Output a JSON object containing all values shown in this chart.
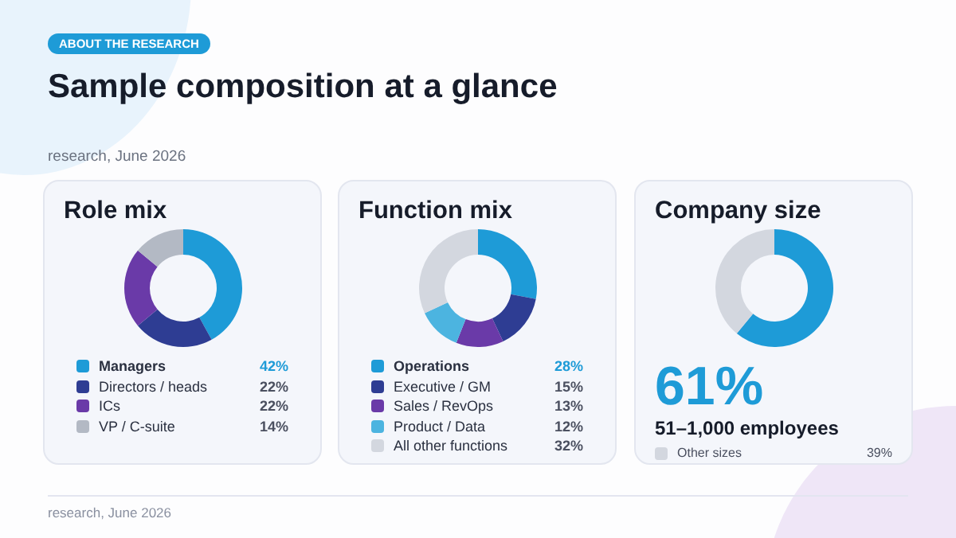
{
  "chart_data": [
    {
      "type": "other",
      "title": "Sample composition at a glance",
      "annotations": [
        "ABOUT THE RESEARCH",
        "research, June 2026",
        "research, June 2026"
      ]
    },
    {
      "type": "donut",
      "title": "Role mix",
      "categories": [
        "Managers",
        "Directors / heads",
        "ICs",
        "VP / C-suite"
      ],
      "values": [
        42,
        22,
        22,
        14
      ],
      "value_labels": [
        "42%",
        "22%",
        "22%",
        "14%"
      ],
      "colors": [
        "#1e9bd7",
        "#2e3d93",
        "#6a3aa8",
        "#b3b9c4"
      ],
      "legend": "bottom"
    },
    {
      "type": "donut",
      "title": "Function mix",
      "categories": [
        "Operations",
        "Executive / GM",
        "Sales / RevOps",
        "Product / Data",
        "All other functions"
      ],
      "values": [
        28,
        15,
        13,
        12,
        32
      ],
      "value_labels": [
        "28%",
        "15%",
        "13%",
        "12%",
        "32%"
      ],
      "colors": [
        "#1e9bd7",
        "#2e3d93",
        "#6a3aa8",
        "#4cb4e0",
        "#d3d7df"
      ],
      "legend": "bottom"
    },
    {
      "type": "donut",
      "title": "Company size",
      "categories": [
        "51–1,000 employees",
        "Other sizes"
      ],
      "values": [
        61,
        39
      ],
      "value_labels": [
        "61%",
        "39%"
      ],
      "colors": [
        "#1e9bd7",
        "#d3d7df"
      ],
      "legend": "bottom"
    }
  ]
}
